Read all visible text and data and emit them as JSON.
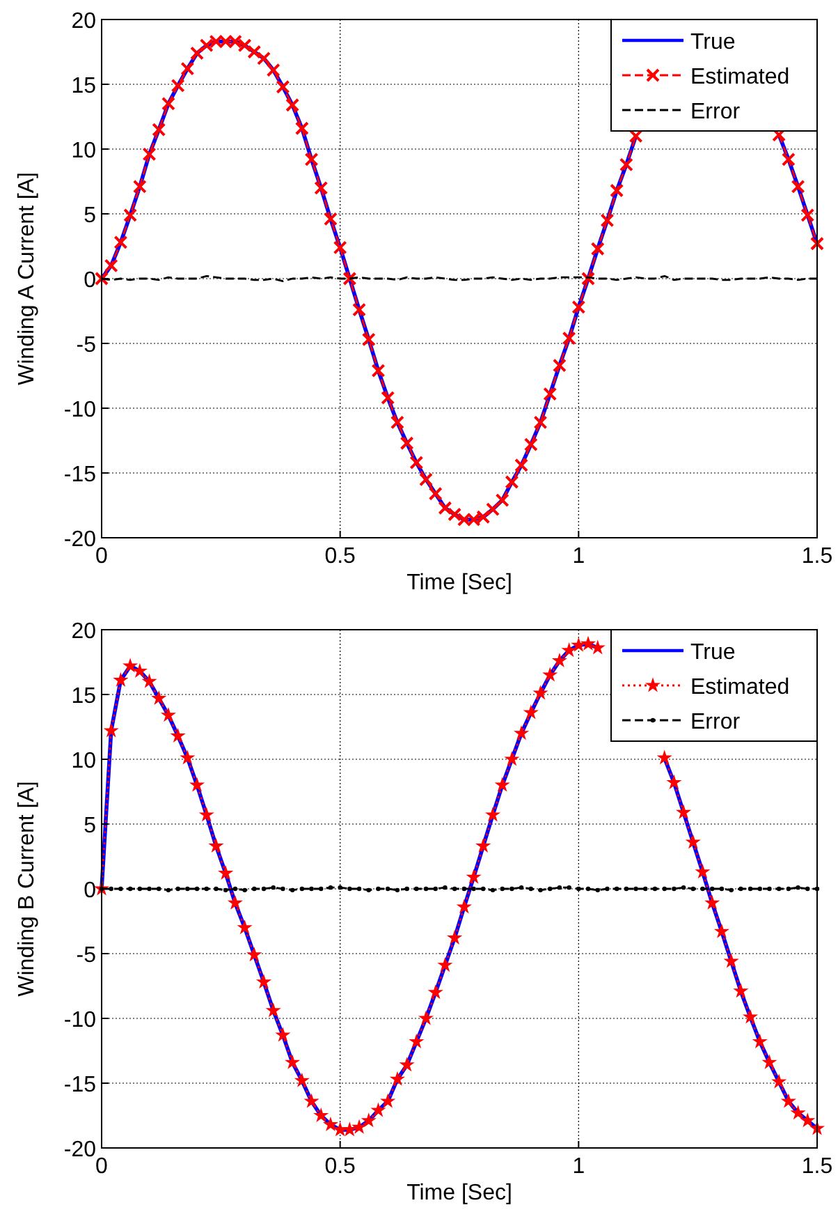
{
  "chart_data": [
    {
      "type": "line",
      "xlabel": "Time [Sec]",
      "ylabel": "Winding A Current [A]",
      "xlim": [
        0,
        1.5
      ],
      "ylim": [
        -20,
        20
      ],
      "xticks": [
        0,
        0.5,
        1,
        1.5
      ],
      "yticks": [
        -20,
        -15,
        -10,
        -5,
        0,
        5,
        10,
        15,
        20
      ],
      "grid": true,
      "legend": "top right",
      "x": [
        0,
        0.02,
        0.04,
        0.06,
        0.08,
        0.1,
        0.12,
        0.14,
        0.16,
        0.18,
        0.2,
        0.22,
        0.24,
        0.26,
        0.28,
        0.3,
        0.32,
        0.34,
        0.36,
        0.38,
        0.4,
        0.42,
        0.44,
        0.46,
        0.48,
        0.5,
        0.52,
        0.54,
        0.56,
        0.58,
        0.6,
        0.62,
        0.64,
        0.66,
        0.68,
        0.7,
        0.72,
        0.74,
        0.76,
        0.78,
        0.8,
        0.82,
        0.84,
        0.86,
        0.88,
        0.9,
        0.92,
        0.94,
        0.96,
        0.98,
        1,
        1.02,
        1.04,
        1.06,
        1.08,
        1.1,
        1.12,
        1.14,
        1.16,
        1.18,
        1.2,
        1.22,
        1.24,
        1.26,
        1.28,
        1.3,
        1.32,
        1.34,
        1.36,
        1.38,
        1.4,
        1.42,
        1.44,
        1.46,
        1.48,
        1.5
      ],
      "series": [
        {
          "name": "True",
          "color": "#0000ff",
          "line_style": "solid",
          "marker": "none",
          "values": [
            0,
            1.0,
            2.8,
            4.9,
            7.1,
            9.6,
            11.5,
            13.5,
            14.9,
            16.2,
            17.4,
            18.0,
            18.3,
            18.3,
            18.3,
            18.0,
            17.5,
            17.0,
            16.1,
            14.8,
            13.4,
            11.6,
            9.2,
            7.0,
            4.6,
            2.4,
            0,
            -2.4,
            -4.7,
            -7.1,
            -9.2,
            -11.1,
            -12.7,
            -14.2,
            -15.5,
            -16.6,
            -17.7,
            -18.2,
            -18.6,
            -18.6,
            -18.4,
            -17.8,
            -17.1,
            -15.7,
            -14.4,
            -12.8,
            -11.1,
            -8.9,
            -6.7,
            -4.6,
            -2.2,
            0,
            2.3,
            4.5,
            6.8,
            8.8,
            11.0,
            null,
            null,
            null,
            null,
            null,
            null,
            null,
            null,
            null,
            null,
            null,
            null,
            null,
            null,
            11.1,
            9.2,
            7.1,
            4.9,
            2.7
          ]
        },
        {
          "name": "Estimated",
          "color": "#ff0000",
          "line_style": "dashed",
          "marker": "cross",
          "values": [
            0,
            1.0,
            2.8,
            4.9,
            7.1,
            9.6,
            11.5,
            13.5,
            14.9,
            16.2,
            17.4,
            18.0,
            18.3,
            18.3,
            18.3,
            18.0,
            17.5,
            17.0,
            16.1,
            14.8,
            13.4,
            11.6,
            9.2,
            7.0,
            4.6,
            2.4,
            0,
            -2.4,
            -4.7,
            -7.1,
            -9.2,
            -11.1,
            -12.7,
            -14.2,
            -15.5,
            -16.6,
            -17.7,
            -18.2,
            -18.6,
            -18.6,
            -18.4,
            -17.8,
            -17.1,
            -15.7,
            -14.4,
            -12.8,
            -11.1,
            -8.9,
            -6.7,
            -4.6,
            -2.2,
            0,
            2.3,
            4.5,
            6.8,
            8.8,
            11.0,
            null,
            null,
            null,
            null,
            null,
            null,
            null,
            null,
            null,
            null,
            null,
            null,
            null,
            null,
            11.1,
            9.2,
            7.1,
            4.9,
            2.7
          ]
        },
        {
          "name": "Error",
          "color": "#000000",
          "line_style": "dashed",
          "marker": "none",
          "values": [
            0,
            -0.1,
            0,
            -0.1,
            0,
            0,
            -0.1,
            0.1,
            0,
            0,
            0,
            0.2,
            0.1,
            0,
            0,
            0,
            -0.1,
            -0.1,
            0,
            -0.2,
            0,
            0,
            0.1,
            0,
            0.1,
            0,
            0,
            0.1,
            0,
            0,
            0,
            -0.1,
            0.1,
            0,
            0,
            0.1,
            0,
            -0.1,
            -0.1,
            0,
            0,
            0.1,
            0,
            -0.1,
            0,
            -0.1,
            0,
            0,
            0.1,
            0.1,
            0.1,
            0.1,
            0,
            0,
            -0.1,
            0,
            0.1,
            0,
            0,
            0.2,
            -0.1,
            0,
            0,
            0,
            0,
            -0.1,
            -0.1,
            0,
            0,
            0,
            0.1,
            0,
            0,
            -0.1,
            0,
            0
          ]
        }
      ]
    },
    {
      "type": "line",
      "xlabel": "Time [Sec]",
      "ylabel": "Winding B Current [A]",
      "xlim": [
        0,
        1.5
      ],
      "ylim": [
        -20,
        20
      ],
      "xticks": [
        0,
        0.5,
        1,
        1.5
      ],
      "yticks": [
        -20,
        -15,
        -10,
        -5,
        0,
        5,
        10,
        15,
        20
      ],
      "grid": true,
      "legend": "top right",
      "x": [
        0,
        0.02,
        0.04,
        0.06,
        0.08,
        0.1,
        0.12,
        0.14,
        0.16,
        0.18,
        0.2,
        0.22,
        0.24,
        0.26,
        0.28,
        0.3,
        0.32,
        0.34,
        0.36,
        0.38,
        0.4,
        0.42,
        0.44,
        0.46,
        0.48,
        0.5,
        0.52,
        0.54,
        0.56,
        0.58,
        0.6,
        0.62,
        0.64,
        0.66,
        0.68,
        0.7,
        0.72,
        0.74,
        0.76,
        0.78,
        0.8,
        0.82,
        0.84,
        0.86,
        0.88,
        0.9,
        0.92,
        0.94,
        0.96,
        0.98,
        1,
        1.02,
        1.04,
        1.06,
        1.08,
        1.1,
        1.12,
        1.14,
        1.16,
        1.18,
        1.2,
        1.22,
        1.24,
        1.26,
        1.28,
        1.3,
        1.32,
        1.34,
        1.36,
        1.38,
        1.4,
        1.42,
        1.44,
        1.46,
        1.48,
        1.5
      ],
      "series": [
        {
          "name": "True",
          "color": "#0000ff",
          "line_style": "solid",
          "marker": "none",
          "values": [
            0,
            12.2,
            16.1,
            17.2,
            16.8,
            16.0,
            14.7,
            13.4,
            11.8,
            10.1,
            8.0,
            5.7,
            3.3,
            1.2,
            -1.1,
            -3.0,
            -5.1,
            -7.2,
            -9.4,
            -11.3,
            -13.4,
            -14.8,
            -16.4,
            -17.5,
            -18.2,
            -18.6,
            -18.6,
            -18.4,
            -17.9,
            -17.1,
            -16.4,
            -14.7,
            -13.6,
            -11.8,
            -10.0,
            -8.0,
            -5.9,
            -3.8,
            -1.4,
            0.9,
            3.3,
            5.7,
            8.0,
            10.0,
            12.0,
            13.6,
            15.1,
            16.5,
            17.6,
            18.4,
            18.8,
            18.9,
            18.6,
            null,
            null,
            null,
            null,
            null,
            null,
            10.1,
            8.2,
            5.9,
            3.6,
            1.3,
            -1.1,
            -3.3,
            -5.6,
            -7.9,
            -9.9,
            -11.8,
            -13.4,
            -14.9,
            -16.4,
            -17.3,
            -17.9,
            -18.5
          ]
        },
        {
          "name": "Estimated",
          "color": "#ff0000",
          "line_style": "dotted",
          "marker": "star",
          "values": [
            0,
            12.2,
            16.1,
            17.2,
            16.8,
            16.0,
            14.7,
            13.4,
            11.8,
            10.1,
            8.0,
            5.7,
            3.3,
            1.2,
            -1.1,
            -3.0,
            -5.1,
            -7.2,
            -9.4,
            -11.3,
            -13.4,
            -14.8,
            -16.4,
            -17.5,
            -18.2,
            -18.6,
            -18.6,
            -18.4,
            -17.9,
            -17.1,
            -16.4,
            -14.7,
            -13.6,
            -11.8,
            -10.0,
            -8.0,
            -5.9,
            -3.8,
            -1.4,
            0.9,
            3.3,
            5.7,
            8.0,
            10.0,
            12.0,
            13.6,
            15.1,
            16.5,
            17.6,
            18.4,
            18.8,
            18.9,
            18.6,
            null,
            null,
            null,
            null,
            null,
            null,
            10.1,
            8.2,
            5.9,
            3.6,
            1.3,
            -1.1,
            -3.3,
            -5.6,
            -7.9,
            -9.9,
            -11.8,
            -13.4,
            -14.9,
            -16.4,
            -17.3,
            -17.9,
            -18.5
          ]
        },
        {
          "name": "Error",
          "color": "#000000",
          "line_style": "dashed",
          "marker": "circle",
          "values": [
            0,
            0,
            0,
            0,
            0,
            0,
            0,
            -0.1,
            0,
            0,
            0,
            0,
            0,
            -0.1,
            0,
            -0.1,
            0,
            0,
            0.1,
            0,
            -0.1,
            0,
            0,
            0,
            0.1,
            0.1,
            0,
            0,
            -0.1,
            0,
            0,
            -0.1,
            0,
            0,
            0,
            0,
            0.1,
            0,
            0,
            0,
            0,
            -0.1,
            0,
            0,
            0.1,
            0,
            -0.1,
            0,
            0.1,
            0.1,
            0,
            0,
            -0.1,
            0,
            0,
            0,
            0,
            0,
            0,
            0,
            0,
            0.1,
            0,
            0,
            0,
            0,
            -0.1,
            0,
            0,
            0,
            0,
            0,
            0,
            0.1,
            0,
            0
          ]
        }
      ]
    }
  ]
}
